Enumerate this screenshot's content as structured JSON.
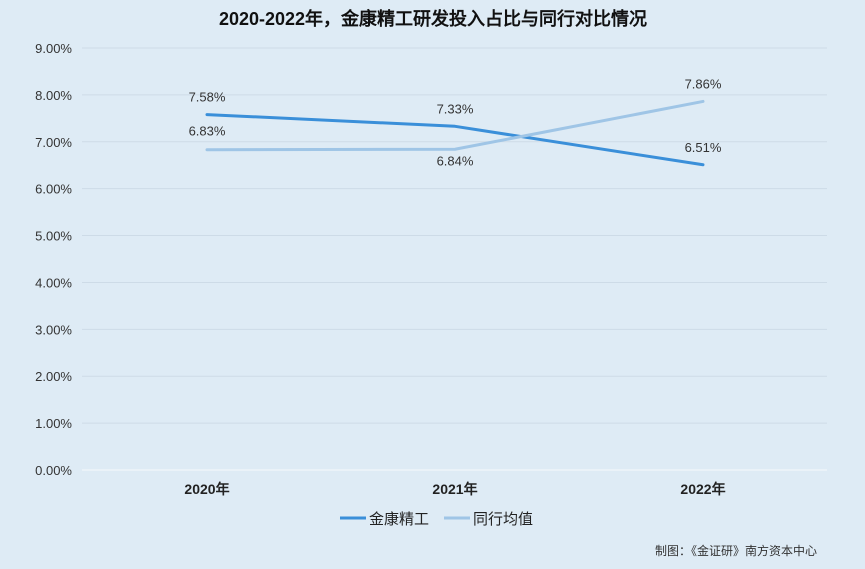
{
  "chart_data": {
    "type": "line",
    "title": "2020-2022年，金康精工研发投入占比与同行对比情况",
    "categories": [
      "2020年",
      "2021年",
      "2022年"
    ],
    "ylim": [
      0,
      9
    ],
    "yticks": [
      "0.00%",
      "1.00%",
      "2.00%",
      "3.00%",
      "4.00%",
      "5.00%",
      "6.00%",
      "7.00%",
      "8.00%",
      "9.00%"
    ],
    "grid": true,
    "legend_position": "bottom",
    "series": [
      {
        "name": "金康精工",
        "values": [
          7.58,
          7.33,
          6.51
        ],
        "labels": [
          "7.58%",
          "7.33%",
          "6.51%"
        ],
        "color": "#3a8fd9"
      },
      {
        "name": "同行均值",
        "values": [
          6.83,
          6.84,
          7.86
        ],
        "labels": [
          "6.83%",
          "6.84%",
          "7.86%"
        ],
        "color": "#9fc5e6"
      }
    ]
  },
  "footer": {
    "credit": "制图：《金证研》南方资本中心"
  }
}
